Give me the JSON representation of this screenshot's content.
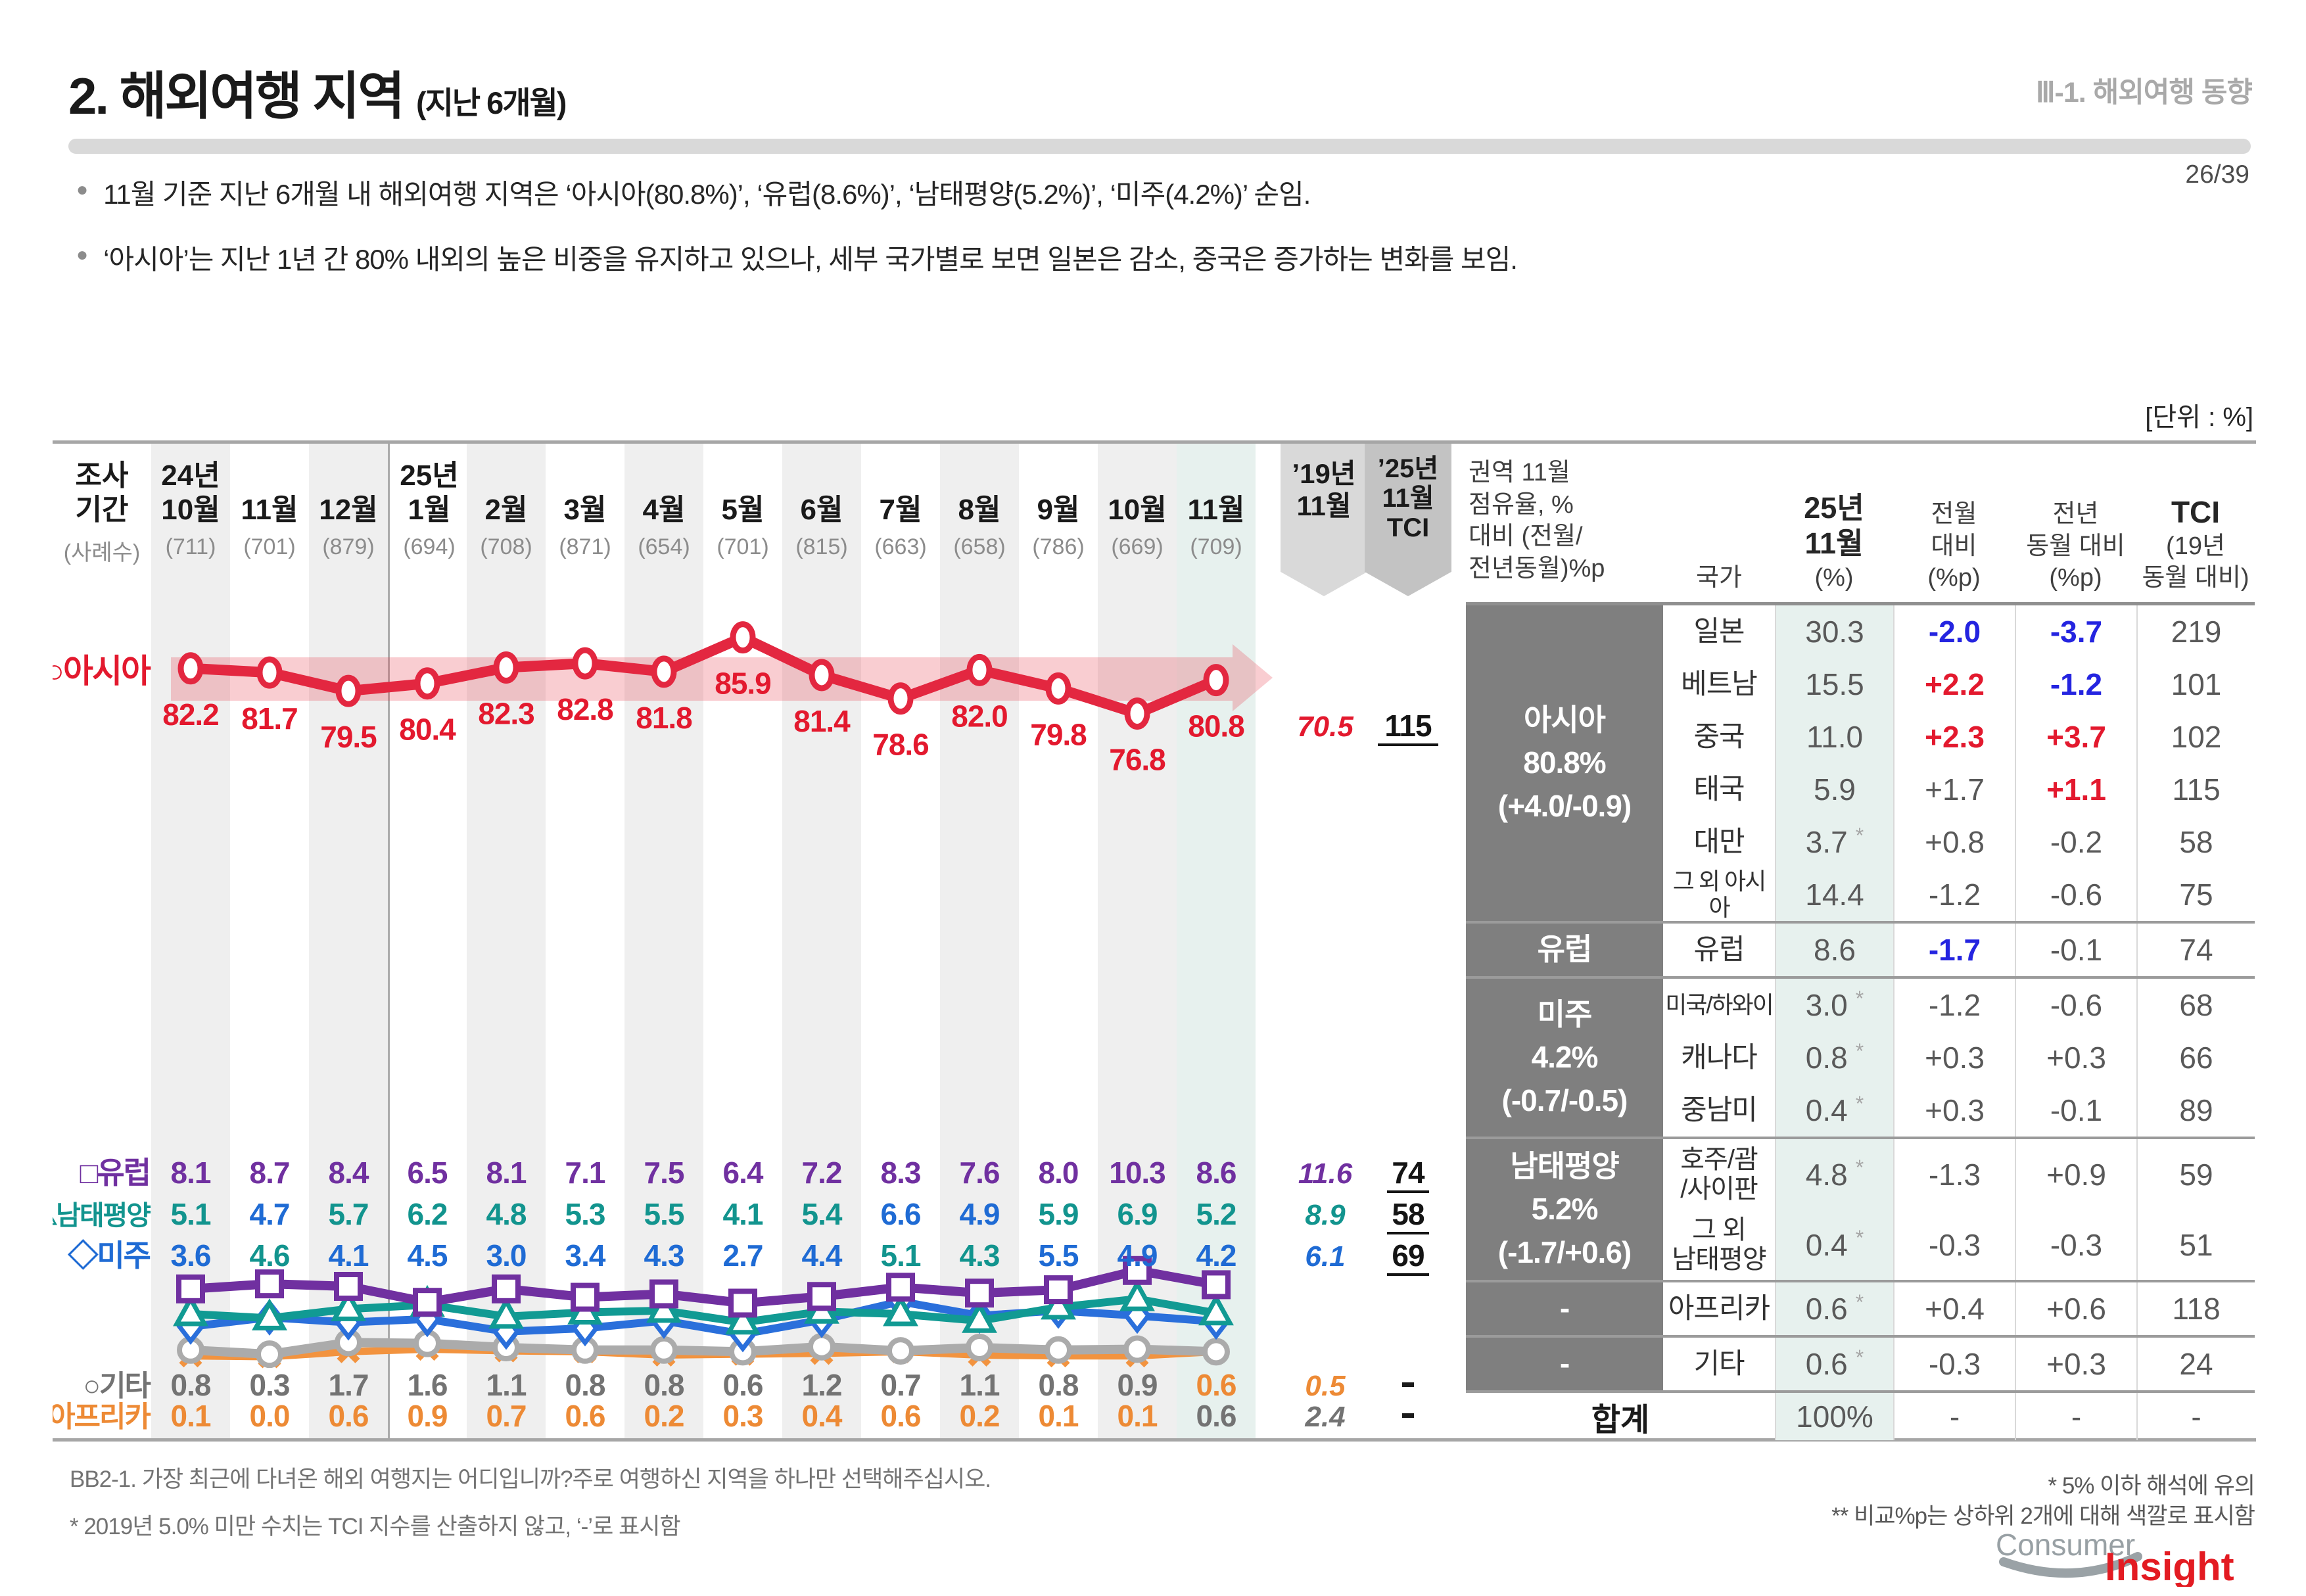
{
  "header": {
    "title": "2. 해외여행 지역",
    "title_suffix": "(지난 6개월)",
    "breadcrumb": "Ⅲ-1. 해외여행 동향",
    "page": "26/39",
    "unit_label": "[단위 : %]"
  },
  "bullets": [
    "11월 기준 지난 6개월 내 해외여행 지역은 ‘아시아(80.8%)’, ‘유럽(8.6%)’, ‘남태평양(5.2%)’, ‘미주(4.2%)’ 순임.",
    "‘아시아’는 지난 1년 간 80% 내외의 높은 비중을 유지하고 있으나, 세부 국가별로 보면 일본은 감소, 중국은 증가하는 변화를 보임."
  ],
  "chart_data": {
    "type": "line",
    "unit": "%",
    "ylim": [
      0,
      100
    ],
    "x_header": {
      "line1": "조사",
      "line2": "기간",
      "sub": "(사례수)"
    },
    "months": [
      {
        "year": "24년",
        "label": "10월",
        "n": "(711)",
        "bg": "stripe"
      },
      {
        "label": "11월",
        "n": "(701)"
      },
      {
        "label": "12월",
        "n": "(879)",
        "bg": "stripe"
      },
      {
        "year": "25년",
        "label": "1월",
        "n": "(694)",
        "divider": true
      },
      {
        "label": "2월",
        "n": "(708)",
        "bg": "stripe"
      },
      {
        "label": "3월",
        "n": "(871)"
      },
      {
        "label": "4월",
        "n": "(654)",
        "bg": "stripe"
      },
      {
        "label": "5월",
        "n": "(701)"
      },
      {
        "label": "6월",
        "n": "(815)",
        "bg": "stripe"
      },
      {
        "label": "7월",
        "n": "(663)"
      },
      {
        "label": "8월",
        "n": "(658)",
        "bg": "stripe"
      },
      {
        "label": "9월",
        "n": "(786)"
      },
      {
        "label": "10월",
        "n": "(669)",
        "bg": "stripe"
      },
      {
        "label": "11월",
        "n": "(709)",
        "bg": "mint"
      }
    ],
    "extra_columns": [
      {
        "id": "ref2019",
        "text": "’19년\n11월"
      },
      {
        "id": "tci2025",
        "text": "’25년\n11월\nTCI"
      }
    ],
    "band": {
      "color": "#e63946",
      "opacity": 0.25
    },
    "palette": {
      "p": "#7030a0",
      "t": "#12948e",
      "b": "#1f6bd4",
      "g": "#737373",
      "o": "#ed8a35",
      "r": "#e3192e",
      "k": "#1a1a1a"
    },
    "series": [
      {
        "key": "asia",
        "name": "아시아",
        "marker": "ellipse",
        "color": "#e32740",
        "label_color": "#e3192e",
        "values": [
          82.2,
          81.7,
          79.5,
          80.4,
          82.3,
          82.8,
          81.8,
          85.9,
          81.4,
          78.6,
          82.0,
          79.8,
          76.8,
          80.8
        ],
        "ref19": "70.5",
        "tci": "115"
      },
      {
        "key": "europe",
        "name": "유럽",
        "marker": "square",
        "color": "#7030a0",
        "label_color": "#7030a0",
        "values": [
          8.1,
          8.7,
          8.4,
          6.5,
          8.1,
          7.1,
          7.5,
          6.4,
          7.2,
          8.3,
          7.6,
          8.0,
          10.3,
          8.6
        ],
        "ref19": "11.6",
        "tci": "74"
      },
      {
        "key": "pacific",
        "name": "남태평양",
        "marker": "triangle",
        "color": "#119a93",
        "label_color": "#12948e",
        "values": [
          5.1,
          4.6,
          5.7,
          6.2,
          4.8,
          5.3,
          5.5,
          4.1,
          5.4,
          5.1,
          4.3,
          5.9,
          6.9,
          5.2
        ],
        "ref19": "8.9",
        "tci": "58"
      },
      {
        "key": "americas",
        "name": "미주",
        "marker": "diamond",
        "color": "#2a6fdb",
        "label_color": "#1f6bd4",
        "values": [
          3.6,
          4.7,
          4.1,
          4.5,
          3.0,
          3.4,
          4.3,
          2.7,
          4.4,
          6.6,
          4.9,
          5.5,
          4.9,
          4.2
        ],
        "ref19": "6.1",
        "tci": "69"
      },
      {
        "key": "etc",
        "name": "기타",
        "marker": "circle",
        "color": "#ababab",
        "label_color": "#737373",
        "values": [
          0.8,
          0.3,
          1.7,
          1.6,
          1.1,
          0.8,
          0.8,
          0.6,
          1.2,
          0.7,
          1.1,
          0.8,
          0.9,
          0.6
        ],
        "ref19": "2.4",
        "tci": "-"
      },
      {
        "key": "africa",
        "name": "아프리카",
        "marker": "cross",
        "color": "#f2933f",
        "label_color": "#ed8a35",
        "values": [
          0.1,
          0.0,
          0.6,
          0.9,
          0.7,
          0.6,
          0.2,
          0.3,
          0.4,
          0.6,
          0.2,
          0.1,
          0.1,
          0.6
        ],
        "ref19": "0.5",
        "tci": "-"
      }
    ],
    "label_rows": [
      {
        "series": "europe",
        "cells": [
          [
            "8.1",
            "p"
          ],
          [
            "8.7",
            "p"
          ],
          [
            "8.4",
            "p"
          ],
          [
            "6.5",
            "p"
          ],
          [
            "8.1",
            "p"
          ],
          [
            "7.1",
            "p"
          ],
          [
            "7.5",
            "p"
          ],
          [
            "6.4",
            "p"
          ],
          [
            "7.2",
            "p"
          ],
          [
            "8.3",
            "p"
          ],
          [
            "7.6",
            "p"
          ],
          [
            "8.0",
            "p"
          ],
          [
            "10.3",
            "p"
          ],
          [
            "8.6",
            "p"
          ]
        ],
        "ref19": [
          "11.6",
          "p"
        ],
        "tci": "74"
      },
      {
        "series": "pacific",
        "cells": [
          [
            "5.1",
            "t"
          ],
          [
            "4.7",
            "b"
          ],
          [
            "5.7",
            "t"
          ],
          [
            "6.2",
            "t"
          ],
          [
            "4.8",
            "t"
          ],
          [
            "5.3",
            "t"
          ],
          [
            "5.5",
            "t"
          ],
          [
            "4.1",
            "t"
          ],
          [
            "5.4",
            "t"
          ],
          [
            "6.6",
            "b"
          ],
          [
            "4.9",
            "b"
          ],
          [
            "5.9",
            "t"
          ],
          [
            "6.9",
            "t"
          ],
          [
            "5.2",
            "t"
          ]
        ],
        "ref19": [
          "8.9",
          "t"
        ],
        "tci": "58"
      },
      {
        "series": "americas",
        "cells": [
          [
            "3.6",
            "b"
          ],
          [
            "4.6",
            "t"
          ],
          [
            "4.1",
            "b"
          ],
          [
            "4.5",
            "b"
          ],
          [
            "3.0",
            "b"
          ],
          [
            "3.4",
            "b"
          ],
          [
            "4.3",
            "b"
          ],
          [
            "2.7",
            "b"
          ],
          [
            "4.4",
            "b"
          ],
          [
            "5.1",
            "t"
          ],
          [
            "4.3",
            "t"
          ],
          [
            "5.5",
            "b"
          ],
          [
            "4.9",
            "b"
          ],
          [
            "4.2",
            "b"
          ]
        ],
        "ref19": [
          "6.1",
          "b"
        ],
        "tci": "69"
      },
      {
        "series": "etc",
        "cells": [
          [
            "0.8",
            "g"
          ],
          [
            "0.3",
            "g"
          ],
          [
            "1.7",
            "g"
          ],
          [
            "1.6",
            "g"
          ],
          [
            "1.1",
            "g"
          ],
          [
            "0.8",
            "g"
          ],
          [
            "0.8",
            "g"
          ],
          [
            "0.6",
            "g"
          ],
          [
            "1.2",
            "g"
          ],
          [
            "0.7",
            "g"
          ],
          [
            "1.1",
            "g"
          ],
          [
            "0.8",
            "g"
          ],
          [
            "0.9",
            "g"
          ],
          [
            "0.6",
            "o"
          ]
        ],
        "ref19": [
          "0.5",
          "o"
        ],
        "tci": "-"
      },
      {
        "series": "africa",
        "cells": [
          [
            "0.1",
            "o"
          ],
          [
            "0.0",
            "o"
          ],
          [
            "0.6",
            "o"
          ],
          [
            "0.9",
            "o"
          ],
          [
            "0.7",
            "o"
          ],
          [
            "0.6",
            "o"
          ],
          [
            "0.2",
            "o"
          ],
          [
            "0.3",
            "o"
          ],
          [
            "0.4",
            "o"
          ],
          [
            "0.6",
            "o"
          ],
          [
            "0.2",
            "o"
          ],
          [
            "0.1",
            "o"
          ],
          [
            "0.1",
            "o"
          ],
          [
            "0.6",
            "g"
          ]
        ],
        "ref19": [
          "2.4",
          "g"
        ],
        "tci": "-"
      }
    ],
    "legend": [
      {
        "key": "asia",
        "text": "○아시아",
        "color": "#e3192e"
      },
      {
        "key": "europe",
        "text": "□유럽",
        "color": "#7030a0"
      },
      {
        "key": "pacific",
        "text": "△남태평양",
        "color": "#12948e"
      },
      {
        "key": "americas",
        "text": "◇미주",
        "color": "#1f6bd4"
      },
      {
        "key": "etc",
        "text": "○기타",
        "color": "#737373"
      },
      {
        "key": "africa",
        "text": "×아프리카",
        "color": "#ed8a35"
      }
    ]
  },
  "table": {
    "columns": [
      {
        "rest": "권역 11월\n점유율, %\n대비 (전월/\n전년동월)%p"
      },
      {
        "rest": "국가"
      },
      {
        "strong": "25년\n11월",
        "rest": "(%)"
      },
      {
        "rest": "전월\n대비\n(%p)"
      },
      {
        "rest": "전년\n동월 대비\n(%p)"
      },
      {
        "strong": "TCI",
        "rest": "(19년\n동월 대비)"
      }
    ],
    "blocks": [
      {
        "region": "아시아\n80.8%\n(+4.0/-0.9)",
        "rows": [
          {
            "country": "일본",
            "share": "30.3",
            "mom": "-2.0",
            "mom_c": "blue",
            "yoy": "-3.7",
            "yoy_c": "blue",
            "tci": "219"
          },
          {
            "country": "베트남",
            "share": "15.5",
            "mom": "+2.2",
            "mom_c": "red",
            "yoy": "-1.2",
            "yoy_c": "blue",
            "tci": "101"
          },
          {
            "country": "중국",
            "share": "11.0",
            "mom": "+2.3",
            "mom_c": "red",
            "yoy": "+3.7",
            "yoy_c": "red",
            "tci": "102"
          },
          {
            "country": "태국",
            "share": "5.9",
            "mom": "+1.7",
            "yoy": "+1.1",
            "yoy_c": "red",
            "tci": "115"
          },
          {
            "country": "대만",
            "share": "3.7",
            "ast": true,
            "mom": "+0.8",
            "yoy": "-0.2",
            "tci": "58"
          },
          {
            "country": "그 외 아시아",
            "share": "14.4",
            "mom": "-1.2",
            "yoy": "-0.6",
            "tci": "75"
          }
        ]
      },
      {
        "region": "유럽",
        "rows": [
          {
            "country": "유럽",
            "share": "8.6",
            "mom": "-1.7",
            "mom_c": "blue",
            "yoy": "-0.1",
            "tci": "74"
          }
        ]
      },
      {
        "region": "미주\n4.2%\n(-0.7/-0.5)",
        "rows": [
          {
            "country": "미국/하와이",
            "share": "3.0",
            "ast": true,
            "mom": "-1.2",
            "yoy": "-0.6",
            "tci": "68"
          },
          {
            "country": "캐나다",
            "share": "0.8",
            "ast": true,
            "mom": "+0.3",
            "yoy": "+0.3",
            "tci": "66"
          },
          {
            "country": "중남미",
            "share": "0.4",
            "ast": true,
            "mom": "+0.3",
            "yoy": "-0.1",
            "tci": "89"
          }
        ]
      },
      {
        "region": "남태평양\n5.2%\n(-1.7/+0.6)",
        "rows": [
          {
            "country": "호주/괌\n/사이판",
            "share": "4.8",
            "ast": true,
            "mom": "-1.3",
            "yoy": "+0.9",
            "tci": "59",
            "tall": true
          },
          {
            "country": "그 외\n남태평양",
            "share": "0.4",
            "ast": true,
            "mom": "-0.3",
            "yoy": "-0.3",
            "tci": "51",
            "tall": true
          }
        ]
      },
      {
        "region": "-",
        "rows": [
          {
            "country": "아프리카",
            "share": "0.6",
            "ast": true,
            "mom": "+0.4",
            "yoy": "+0.6",
            "tci": "118"
          }
        ]
      },
      {
        "region": "-",
        "rows": [
          {
            "country": "기타",
            "share": "0.6",
            "ast": true,
            "mom": "-0.3",
            "yoy": "+0.3",
            "tci": "24"
          }
        ]
      }
    ],
    "total": {
      "label": "합계",
      "share": "100%",
      "mom": "-",
      "yoy": "-",
      "tci": "-"
    }
  },
  "footnotes": {
    "question": "BB2-1. 가장 최근에 다녀온 해외 여행지는 어디입니까?주로 여행하신 지역을 하나만 선택해주십시오.",
    "note": "* 2019년 5.0% 미만 수치는 TCI 지수를 산출하지 않고, ‘-’로 표시함",
    "right1": "* 5% 이하 해석에 유의",
    "right2": "** 비교%p는 상하위 2개에 대해 색깔로 표시함"
  },
  "logo": {
    "part1": "Consumer",
    "part2": "Insight"
  }
}
